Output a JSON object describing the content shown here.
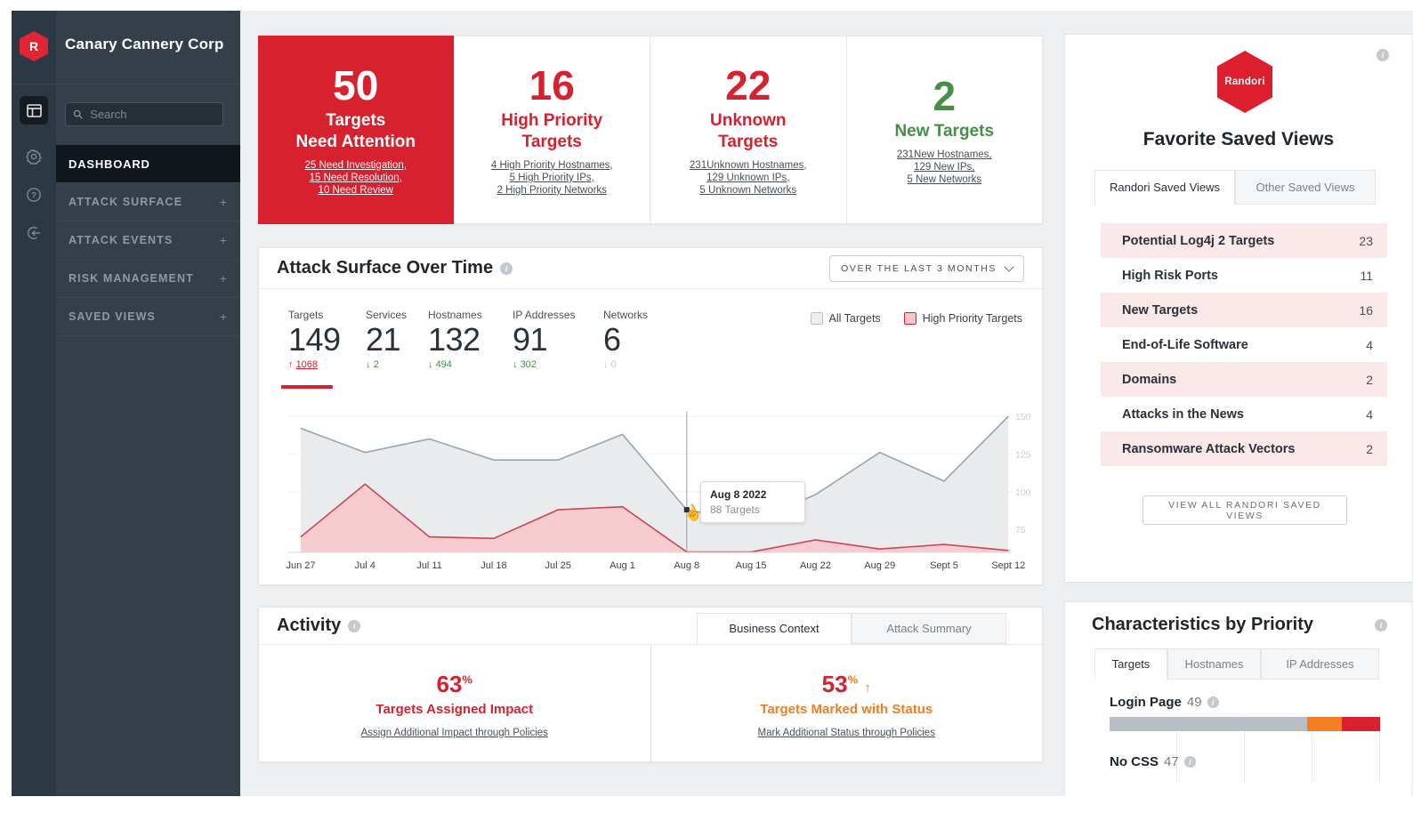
{
  "sidebar": {
    "logo_letter": "R",
    "org_name": "Canary Cannery Corp",
    "search_placeholder": "Search",
    "plus_glyph": "+",
    "rail_icons": [
      "dashboard-icon",
      "gear-icon",
      "help-icon",
      "logout-icon"
    ],
    "menu": [
      {
        "label": "DASHBOARD",
        "active": true,
        "expandable": false
      },
      {
        "label": "ATTACK SURFACE",
        "active": false,
        "expandable": true
      },
      {
        "label": "ATTACK EVENTS",
        "active": false,
        "expandable": true
      },
      {
        "label": "RISK MANAGEMENT",
        "active": false,
        "expandable": true
      },
      {
        "label": "SAVED VIEWS",
        "active": false,
        "expandable": true
      }
    ]
  },
  "summary_cards": [
    {
      "value": "50",
      "label": "Targets\nNeed Attention",
      "theme": "inverse",
      "links": [
        "25 Need Investigation,",
        "15 Need Resolution,",
        "10 Need Review"
      ]
    },
    {
      "value": "16",
      "label": "High Priority\nTargets",
      "theme": "red",
      "links": [
        "4 High Priority Hostnames,",
        "5 High Priority IPs,",
        "2 High Priority Networks"
      ]
    },
    {
      "value": "22",
      "label": "Unknown\nTargets",
      "theme": "red",
      "links": [
        "231Unknown Hostnames,",
        "129 Unknown IPs,",
        "5 Unknown Networks"
      ]
    },
    {
      "value": "2",
      "label": "New Targets",
      "theme": "green",
      "links": [
        "231New Hostnames,",
        "129 New IPs,",
        "5 New Networks"
      ]
    }
  ],
  "attack_surface": {
    "title": "Attack Surface Over Time",
    "range_selector": "OVER THE LAST 3 MONTHS",
    "stats": [
      {
        "label": "Targets",
        "value": "149",
        "delta": "1068",
        "arrow": "↑",
        "tone": "up-red",
        "active": true
      },
      {
        "label": "Services",
        "value": "21",
        "delta": "2",
        "arrow": "↓",
        "tone": "down-green",
        "active": false
      },
      {
        "label": "Hostnames",
        "value": "132",
        "delta": "494",
        "arrow": "↓",
        "tone": "down-green",
        "active": false
      },
      {
        "label": "IP Addresses",
        "value": "91",
        "delta": "302",
        "arrow": "↓",
        "tone": "down-green",
        "active": false
      },
      {
        "label": "Networks",
        "value": "6",
        "delta": "0",
        "arrow": "↓",
        "tone": "down-gray",
        "active": false
      }
    ],
    "legend": [
      {
        "label": "All Targets",
        "swatch": "all"
      },
      {
        "label": "High Priority Targets",
        "swatch": "hp"
      }
    ],
    "chart_data": {
      "type": "area",
      "x": [
        "Jun 27",
        "Jul 4",
        "Jul 11",
        "Jul 18",
        "Jul 25",
        "Aug 1",
        "Aug 8",
        "Aug 15",
        "Aug 22",
        "Aug 29",
        "Sept 5",
        "Sept 12"
      ],
      "series": [
        {
          "name": "All Targets",
          "values": [
            142,
            126,
            135,
            121,
            121,
            138,
            88,
            80,
            98,
            126,
            107,
            150
          ]
        },
        {
          "name": "High Priority Targets",
          "values": [
            70,
            105,
            70,
            69,
            88,
            90,
            60,
            60,
            68,
            62,
            65,
            61
          ]
        }
      ],
      "ylim": [
        58,
        153
      ],
      "yticks": [
        150,
        125,
        100,
        75
      ],
      "grid": true,
      "legend_position": "top-right",
      "annotation": {
        "x": "Aug 8",
        "label": "Aug 8 2022",
        "value": "88 Targets"
      }
    },
    "tooltip": {
      "title": "Aug 8 2022",
      "value": "88 Targets"
    }
  },
  "activity": {
    "title": "Activity",
    "tabs": [
      {
        "label": "Business Context",
        "active": true
      },
      {
        "label": "Attack Summary",
        "active": false
      }
    ],
    "metrics": [
      {
        "value": "63",
        "unit": "%",
        "arrow": "",
        "theme": "red",
        "label": "Targets Assigned Impact",
        "link": "Assign Additional Impact through Policies"
      },
      {
        "value": "53",
        "unit": "%",
        "arrow": "↑",
        "theme": "orange",
        "label": "Targets Marked with Status",
        "link": "Mark Additional Status through Policies"
      }
    ]
  },
  "saved_views": {
    "brand": "Randori",
    "title": "Favorite Saved Views",
    "tabs": [
      {
        "label": "Randori Saved Views",
        "active": true
      },
      {
        "label": "Other Saved Views",
        "active": false
      }
    ],
    "rows": [
      {
        "name": "Potential Log4j 2 Targets",
        "count": "23"
      },
      {
        "name": "High Risk Ports",
        "count": "11"
      },
      {
        "name": "New Targets",
        "count": "16"
      },
      {
        "name": "End-of-Life Software",
        "count": "4"
      },
      {
        "name": "Domains",
        "count": "2"
      },
      {
        "name": "Attacks in the News",
        "count": "4"
      },
      {
        "name": "Ransomware Attack Vectors",
        "count": "2"
      }
    ],
    "view_all_label": "VIEW ALL RANDORI SAVED VIEWS"
  },
  "characteristics": {
    "title": "Characteristics by Priority",
    "tabs": [
      {
        "label": "Targets",
        "active": true
      },
      {
        "label": "Hostnames",
        "active": false
      },
      {
        "label": "IP Addresses",
        "active": false
      }
    ],
    "rows": [
      {
        "name": "Login Page",
        "count": "49",
        "segments": [
          {
            "color_key": "bar_gray",
            "pct": 73
          },
          {
            "color_key": "orange",
            "pct": 13
          },
          {
            "color_key": "brand_red",
            "pct": 14
          }
        ]
      },
      {
        "name": "No CSS",
        "count": "47"
      }
    ]
  },
  "colors": {
    "brand_red": "#d7212e",
    "green": "#449044",
    "orange": "#f28021",
    "pink_row": "#fbe9ea",
    "area_all": "#e9ebed",
    "line_all": "#9aa5ae",
    "area_hp": "#f6ccd1",
    "line_hp": "#ce4653",
    "bar_gray": "#b8bec5",
    "sidebar_bg": "#343f4a",
    "rail_bg": "#2c3844"
  }
}
